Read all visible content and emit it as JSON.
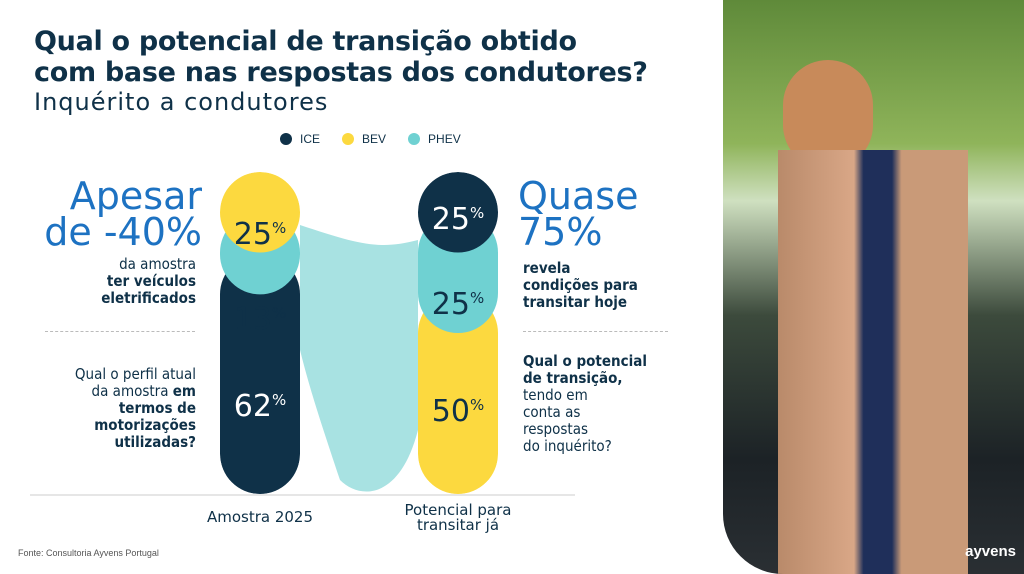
{
  "title": "Qual o potencial de transição obtido com base nas respostas dos condutores?",
  "title_lines": [
    "Qual o potencial de transição obtido",
    "com base nas respostas dos condutores?"
  ],
  "subtitle": "Inquérito a condutores",
  "colors": {
    "ICE": "#0f3148",
    "BEV": "#fcd93f",
    "PHEV": "#6fd1d2",
    "flow": "#a8e2e2",
    "accent": "#1d72c2"
  },
  "chart_data": {
    "type": "bar",
    "stacked": true,
    "categories": [
      "Amostra 2025",
      "Potencial para transitar já"
    ],
    "legend_position": "top",
    "series": [
      {
        "name": "ICE",
        "values": [
          62,
          25
        ]
      },
      {
        "name": "BEV",
        "values": [
          25,
          50
        ]
      },
      {
        "name": "PHEV",
        "values": [
          13,
          25
        ]
      }
    ],
    "unit": "%"
  },
  "left": {
    "headline": [
      "Apesar",
      "de -40%"
    ],
    "sub_light": "da amostra",
    "sub_bold": [
      "ter veículos",
      "eletrificados"
    ],
    "question_light": [
      "Qual o perfil atual",
      "da amostra"
    ],
    "question_bold_inline": "em",
    "question_bold": [
      "termos de",
      "motorizações",
      "utilizadas?"
    ]
  },
  "right": {
    "headline": [
      "Quase",
      "75%"
    ],
    "sub_bold": [
      "revela",
      "condições para",
      "transitar hoje"
    ],
    "question_bold": [
      "Qual o potencial",
      "de transição,"
    ],
    "question_light": [
      "tendo em",
      "conta as",
      "respostas",
      "do inquérito?"
    ]
  },
  "source": "Fonte: Consultoria Ayvens Portugal",
  "logo": "ayvens"
}
